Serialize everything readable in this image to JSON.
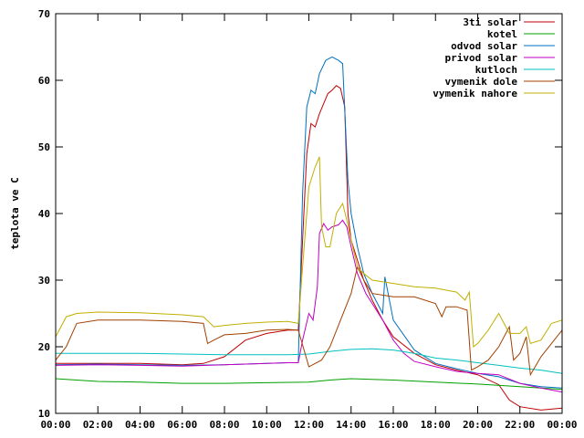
{
  "chart_data": {
    "type": "line",
    "title": "",
    "xlabel": "",
    "ylabel": "teplota ve C",
    "xlim": [
      0,
      24
    ],
    "ylim": [
      10,
      70
    ],
    "x_ticks": [
      "00:00",
      "02:00",
      "04:00",
      "06:00",
      "08:00",
      "10:00",
      "12:00",
      "14:00",
      "16:00",
      "18:00",
      "20:00",
      "22:00",
      "00:00"
    ],
    "y_ticks": [
      10,
      20,
      30,
      40,
      50,
      60,
      70
    ],
    "grid": false,
    "legend_position": "top-right",
    "series": [
      {
        "name": "3ti solar",
        "color": "#c00000",
        "points": [
          [
            0,
            17.5
          ],
          [
            2,
            17.5
          ],
          [
            4,
            17.5
          ],
          [
            6,
            17.3
          ],
          [
            7,
            17.5
          ],
          [
            8,
            18.5
          ],
          [
            9,
            21
          ],
          [
            10,
            22
          ],
          [
            11,
            22.5
          ],
          [
            11.5,
            22.5
          ],
          [
            11.7,
            36
          ],
          [
            11.9,
            49
          ],
          [
            12.1,
            53.5
          ],
          [
            12.3,
            53
          ],
          [
            12.5,
            55
          ],
          [
            12.7,
            56.5
          ],
          [
            12.9,
            58
          ],
          [
            13.1,
            58.5
          ],
          [
            13.3,
            59.2
          ],
          [
            13.5,
            58.8
          ],
          [
            13.7,
            56
          ],
          [
            13.85,
            40
          ],
          [
            14,
            36
          ],
          [
            14.3,
            33
          ],
          [
            14.6,
            30
          ],
          [
            15,
            27
          ],
          [
            15.5,
            24
          ],
          [
            16,
            21.5
          ],
          [
            17,
            19
          ],
          [
            18,
            17.3
          ],
          [
            19,
            16.5
          ],
          [
            20,
            15.8
          ],
          [
            21,
            14.3
          ],
          [
            21.5,
            12
          ],
          [
            22,
            11
          ],
          [
            23,
            10.5
          ],
          [
            24,
            10.8
          ]
        ]
      },
      {
        "name": "kotel",
        "color": "#00a000",
        "points": [
          [
            0,
            15.2
          ],
          [
            2,
            14.8
          ],
          [
            4,
            14.7
          ],
          [
            6,
            14.5
          ],
          [
            8,
            14.5
          ],
          [
            10,
            14.6
          ],
          [
            12,
            14.7
          ],
          [
            13,
            15
          ],
          [
            14,
            15.2
          ],
          [
            16,
            15
          ],
          [
            18,
            14.7
          ],
          [
            20,
            14.4
          ],
          [
            22,
            14
          ],
          [
            24,
            13.6
          ]
        ]
      },
      {
        "name": "odvod solar",
        "color": "#0070c0",
        "points": [
          [
            0,
            17.3
          ],
          [
            2,
            17.4
          ],
          [
            4,
            17.3
          ],
          [
            6,
            17.2
          ],
          [
            8,
            17.3
          ],
          [
            10,
            17.5
          ],
          [
            11,
            17.6
          ],
          [
            11.5,
            17.6
          ],
          [
            11.7,
            43
          ],
          [
            11.9,
            56
          ],
          [
            12.1,
            58.5
          ],
          [
            12.3,
            58
          ],
          [
            12.5,
            61
          ],
          [
            12.8,
            63
          ],
          [
            13.1,
            63.5
          ],
          [
            13.4,
            63
          ],
          [
            13.6,
            62.5
          ],
          [
            13.75,
            52
          ],
          [
            13.85,
            45
          ],
          [
            14,
            40
          ],
          [
            14.3,
            35
          ],
          [
            14.6,
            31
          ],
          [
            15,
            28
          ],
          [
            15.5,
            25
          ],
          [
            15.6,
            30.5
          ],
          [
            16,
            24
          ],
          [
            17,
            19.5
          ],
          [
            18,
            17.5
          ],
          [
            19,
            16.7
          ],
          [
            20,
            16
          ],
          [
            21,
            15.5
          ],
          [
            22,
            14.5
          ],
          [
            23,
            14
          ],
          [
            24,
            13.8
          ]
        ]
      },
      {
        "name": "privod solar",
        "color": "#c000c0",
        "points": [
          [
            0,
            17.2
          ],
          [
            2,
            17.3
          ],
          [
            4,
            17.2
          ],
          [
            6,
            17.1
          ],
          [
            8,
            17.3
          ],
          [
            10,
            17.5
          ],
          [
            11,
            17.6
          ],
          [
            11.5,
            17.6
          ],
          [
            11.7,
            21
          ],
          [
            12,
            25
          ],
          [
            12.2,
            24
          ],
          [
            12.4,
            29
          ],
          [
            12.5,
            37
          ],
          [
            12.7,
            38.5
          ],
          [
            12.9,
            37.5
          ],
          [
            13.1,
            38
          ],
          [
            13.4,
            38.3
          ],
          [
            13.6,
            39
          ],
          [
            13.8,
            38
          ],
          [
            14,
            35
          ],
          [
            14.3,
            31
          ],
          [
            14.7,
            28
          ],
          [
            15,
            26.5
          ],
          [
            15.5,
            24
          ],
          [
            16,
            21
          ],
          [
            16.5,
            19
          ],
          [
            17,
            17.8
          ],
          [
            18,
            17
          ],
          [
            19,
            16.3
          ],
          [
            20,
            16
          ],
          [
            21,
            15.8
          ],
          [
            22,
            14.5
          ],
          [
            23,
            13.8
          ],
          [
            24,
            13.2
          ]
        ]
      },
      {
        "name": "kutloch",
        "color": "#00c0c0",
        "points": [
          [
            0,
            19
          ],
          [
            2,
            19
          ],
          [
            4,
            19
          ],
          [
            6,
            18.9
          ],
          [
            8,
            18.8
          ],
          [
            10,
            18.8
          ],
          [
            11,
            18.8
          ],
          [
            12,
            18.9
          ],
          [
            13,
            19.3
          ],
          [
            14,
            19.6
          ],
          [
            15,
            19.7
          ],
          [
            16,
            19.5
          ],
          [
            17,
            19
          ],
          [
            18,
            18.3
          ],
          [
            19,
            18
          ],
          [
            20,
            17.6
          ],
          [
            21,
            17.2
          ],
          [
            22,
            16.8
          ],
          [
            23,
            16.5
          ],
          [
            24,
            16
          ]
        ]
      },
      {
        "name": "vymenik dole",
        "color": "#a04000",
        "points": [
          [
            0,
            18
          ],
          [
            0.5,
            20
          ],
          [
            1,
            23.5
          ],
          [
            2,
            24
          ],
          [
            4,
            24
          ],
          [
            6,
            23.8
          ],
          [
            7,
            23.5
          ],
          [
            7.2,
            20.5
          ],
          [
            7.5,
            21
          ],
          [
            8,
            21.8
          ],
          [
            9,
            22
          ],
          [
            10,
            22.5
          ],
          [
            11,
            22.6
          ],
          [
            11.5,
            22.5
          ],
          [
            12,
            17
          ],
          [
            12.3,
            17.5
          ],
          [
            12.6,
            18
          ],
          [
            13,
            20
          ],
          [
            13.5,
            24
          ],
          [
            14,
            28
          ],
          [
            14.3,
            32
          ],
          [
            14.6,
            30
          ],
          [
            15,
            28
          ],
          [
            16,
            27.5
          ],
          [
            17,
            27.5
          ],
          [
            18,
            26.5
          ],
          [
            18.3,
            24.5
          ],
          [
            18.5,
            26
          ],
          [
            19,
            26
          ],
          [
            19.5,
            25.5
          ],
          [
            19.7,
            16.5
          ],
          [
            20,
            17
          ],
          [
            20.5,
            18
          ],
          [
            21,
            20
          ],
          [
            21.5,
            23
          ],
          [
            21.7,
            18
          ],
          [
            22,
            19
          ],
          [
            22.3,
            21.5
          ],
          [
            22.5,
            15.8
          ],
          [
            23,
            18.5
          ],
          [
            24,
            22.5
          ]
        ]
      },
      {
        "name": "vymenik nahore",
        "color": "#c0b000",
        "points": [
          [
            0,
            21.5
          ],
          [
            0.5,
            24.5
          ],
          [
            1,
            25
          ],
          [
            2,
            25.2
          ],
          [
            4,
            25.1
          ],
          [
            6,
            24.8
          ],
          [
            7,
            24.5
          ],
          [
            7.5,
            23
          ],
          [
            8,
            23.2
          ],
          [
            9,
            23.5
          ],
          [
            10,
            23.7
          ],
          [
            11,
            23.8
          ],
          [
            11.5,
            23.5
          ],
          [
            11.7,
            32
          ],
          [
            12,
            44
          ],
          [
            12.3,
            47
          ],
          [
            12.5,
            48.5
          ],
          [
            12.6,
            38
          ],
          [
            12.8,
            35
          ],
          [
            13,
            35
          ],
          [
            13.3,
            40
          ],
          [
            13.6,
            41.5
          ],
          [
            13.8,
            39
          ],
          [
            14,
            36
          ],
          [
            14.3,
            32
          ],
          [
            14.6,
            31
          ],
          [
            15,
            30
          ],
          [
            16,
            29.5
          ],
          [
            17,
            29
          ],
          [
            18,
            28.8
          ],
          [
            19,
            28.2
          ],
          [
            19.4,
            27
          ],
          [
            19.6,
            28.2
          ],
          [
            19.8,
            20
          ],
          [
            20,
            20.5
          ],
          [
            20.5,
            22.5
          ],
          [
            21,
            25
          ],
          [
            21.5,
            22
          ],
          [
            22,
            22
          ],
          [
            22.3,
            23
          ],
          [
            22.5,
            20.5
          ],
          [
            23,
            21
          ],
          [
            23.5,
            23.5
          ],
          [
            24,
            24
          ]
        ]
      }
    ]
  }
}
